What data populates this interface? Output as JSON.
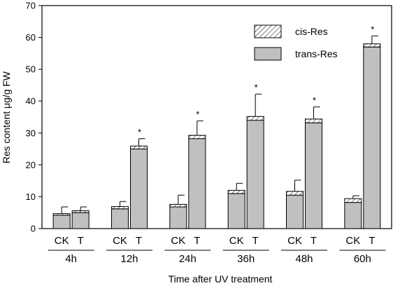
{
  "chart_data": {
    "type": "bar",
    "stacked": true,
    "xlabel": "Time after UV treatment",
    "ylabel": "Res content μg/g FW",
    "ylim": [
      0,
      70
    ],
    "yticks": [
      0,
      10,
      20,
      30,
      40,
      50,
      60,
      70
    ],
    "groups": [
      "4h",
      "12h",
      "24h",
      "36h",
      "48h",
      "60h"
    ],
    "bar_labels": [
      "CK",
      "T"
    ],
    "legend": {
      "position": "top-right",
      "entries": [
        "cis-Res",
        "trans-Res"
      ]
    },
    "significance_marker": "*",
    "series": [
      {
        "name": "trans-Res",
        "pattern": "solid gray",
        "values": [
          [
            4.2,
            5.0
          ],
          [
            6.2,
            25.0
          ],
          [
            6.8,
            28.2
          ],
          [
            11.0,
            34.0
          ],
          [
            10.5,
            33.2
          ],
          [
            8.2,
            57.0
          ]
        ]
      },
      {
        "name": "cis-Res",
        "pattern": "hatched",
        "values": [
          [
            0.5,
            0.6
          ],
          [
            0.7,
            0.9
          ],
          [
            0.8,
            1.1
          ],
          [
            1.0,
            1.2
          ],
          [
            1.2,
            1.2
          ],
          [
            1.2,
            1.0
          ]
        ]
      }
    ],
    "error_bars_upper": [
      [
        6.8,
        6.8
      ],
      [
        8.5,
        28.2
      ],
      [
        10.5,
        33.8
      ],
      [
        14.2,
        42.2
      ],
      [
        15.2,
        38.2
      ],
      [
        10.3,
        60.5
      ]
    ],
    "significant": [
      [
        false,
        false
      ],
      [
        false,
        true
      ],
      [
        false,
        true
      ],
      [
        false,
        true
      ],
      [
        false,
        true
      ],
      [
        false,
        true
      ]
    ]
  },
  "colors": {
    "trans_fill": "#c0c0c0",
    "cis_fill": "#ffffff",
    "stroke": "#000000"
  }
}
